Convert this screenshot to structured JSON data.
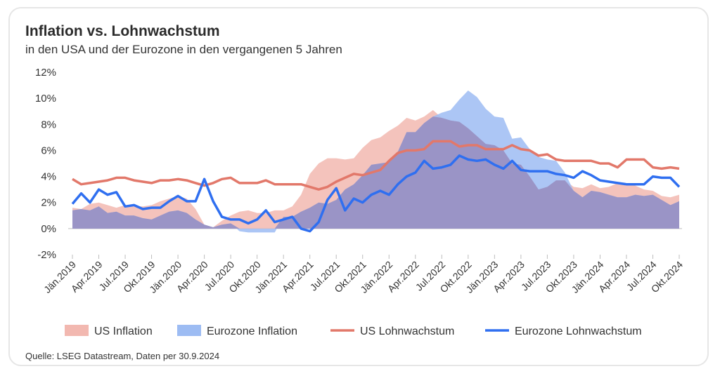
{
  "title": "Inflation vs. Lohnwachstum",
  "subtitle": "in den USA und der Eurozone in den vergangenen 5 Jahren",
  "source": "Quelle: LSEG Datastream, Daten per 30.9.2024",
  "colors": {
    "us_inflation": "#f2b8b0",
    "ez_inflation": "#9dbcf3",
    "us_wage": "#e2786a",
    "ez_wage": "#2f6ff0",
    "overlap": "#9a94c6"
  },
  "chart_data": {
    "type": "area",
    "title": "Inflation vs. Lohnwachstum",
    "ylim": [
      -2,
      12
    ],
    "yticks": [
      "12%",
      "10%",
      "8%",
      "6%",
      "4%",
      "2%",
      "0%",
      "-2%"
    ],
    "ytick_values": [
      12,
      10,
      8,
      6,
      4,
      2,
      0,
      -2
    ],
    "xticks": [
      "Jän.2019",
      "Apr.2019",
      "Jul.2019",
      "Okt.2019",
      "Jän.2020",
      "Apr.2020",
      "Jul.2020",
      "Okt.2020",
      "Jän.2021",
      "Apr.2021",
      "Jul.2021",
      "Okt.2021",
      "Jän.2022",
      "Apr.2022",
      "Jul.2022",
      "Okt.2022",
      "Jän.2023",
      "Apr.2023",
      "Jul.2023",
      "Okt.2023",
      "Jän.2024",
      "Apr.2024",
      "Jul.2024",
      "Okt.2024"
    ],
    "x_count": 70,
    "series": [
      {
        "name": "US Inflation",
        "kind": "area",
        "values": [
          1.6,
          1.5,
          1.9,
          2.0,
          1.8,
          1.6,
          1.8,
          1.7,
          1.7,
          1.8,
          2.1,
          2.3,
          2.5,
          2.3,
          1.5,
          0.3,
          0.1,
          0.6,
          1.0,
          1.3,
          1.4,
          1.2,
          1.2,
          1.4,
          1.4,
          1.7,
          2.6,
          4.2,
          5.0,
          5.4,
          5.4,
          5.3,
          5.4,
          6.2,
          6.8,
          7.0,
          7.5,
          7.9,
          8.5,
          8.3,
          8.6,
          9.1,
          8.5,
          8.3,
          8.2,
          7.7,
          7.1,
          6.5,
          6.4,
          6.0,
          5.0,
          4.9,
          4.0,
          3.0,
          3.2,
          3.7,
          3.7,
          3.2,
          3.1,
          3.4,
          3.1,
          3.2,
          3.5,
          3.4,
          3.3,
          3.0,
          2.9,
          2.5,
          2.4,
          2.6
        ]
      },
      {
        "name": "Eurozone Inflation",
        "kind": "area",
        "values": [
          1.4,
          1.5,
          1.4,
          1.7,
          1.2,
          1.3,
          1.0,
          1.0,
          0.8,
          0.7,
          1.0,
          1.3,
          1.4,
          1.2,
          0.7,
          0.3,
          0.1,
          0.3,
          0.4,
          -0.2,
          -0.3,
          -0.3,
          -0.3,
          -0.3,
          0.9,
          0.9,
          1.3,
          1.6,
          2.0,
          1.9,
          2.2,
          3.0,
          3.4,
          4.1,
          4.9,
          5.0,
          5.1,
          5.9,
          7.4,
          7.4,
          8.1,
          8.6,
          8.9,
          9.1,
          9.9,
          10.6,
          10.1,
          9.2,
          8.6,
          8.5,
          6.9,
          7.0,
          6.1,
          5.5,
          5.3,
          5.2,
          4.3,
          2.9,
          2.4,
          2.9,
          2.8,
          2.6,
          2.4,
          2.4,
          2.6,
          2.5,
          2.6,
          2.2,
          1.8,
          2.1
        ]
      },
      {
        "name": "US Lohnwachstum",
        "kind": "line",
        "values": [
          3.8,
          3.4,
          3.5,
          3.6,
          3.7,
          3.9,
          3.9,
          3.7,
          3.6,
          3.5,
          3.7,
          3.7,
          3.8,
          3.7,
          3.5,
          3.3,
          3.5,
          3.8,
          3.9,
          3.5,
          3.5,
          3.5,
          3.7,
          3.4,
          3.4,
          3.4,
          3.4,
          3.2,
          3.0,
          3.2,
          3.6,
          3.9,
          4.2,
          4.1,
          4.3,
          4.5,
          5.2,
          5.8,
          6.0,
          6.0,
          6.1,
          6.7,
          6.7,
          6.7,
          6.3,
          6.4,
          6.4,
          6.1,
          6.1,
          6.1,
          6.4,
          6.1,
          6.0,
          5.6,
          5.7,
          5.3,
          5.2,
          5.2,
          5.2,
          5.2,
          5.0,
          5.0,
          4.7,
          5.3,
          5.3,
          5.3,
          4.7,
          4.6,
          4.7,
          4.6
        ]
      },
      {
        "name": "Eurozone Lohnwachstum",
        "kind": "line",
        "values": [
          1.9,
          2.7,
          2.0,
          3.0,
          2.6,
          2.8,
          1.7,
          1.8,
          1.5,
          1.6,
          1.6,
          2.1,
          2.5,
          2.1,
          2.1,
          3.8,
          2.1,
          0.9,
          0.7,
          0.7,
          0.4,
          0.7,
          1.4,
          0.5,
          0.7,
          0.9,
          0.0,
          -0.2,
          0.5,
          2.2,
          3.1,
          1.4,
          2.3,
          2.0,
          2.6,
          2.9,
          2.6,
          3.4,
          4.0,
          4.3,
          5.2,
          4.6,
          4.7,
          4.9,
          5.6,
          5.3,
          5.2,
          5.3,
          4.9,
          4.6,
          5.2,
          4.5,
          4.4,
          4.4,
          4.4,
          4.2,
          4.1,
          3.9,
          4.4,
          4.1,
          3.7,
          3.6,
          3.5,
          3.4,
          3.4,
          3.4,
          4.0,
          3.9,
          3.9,
          3.2
        ]
      }
    ],
    "legend": [
      "US Inflation",
      "Eurozone Inflation",
      "US Lohnwachstum",
      "Eurozone Lohnwachstum"
    ]
  }
}
